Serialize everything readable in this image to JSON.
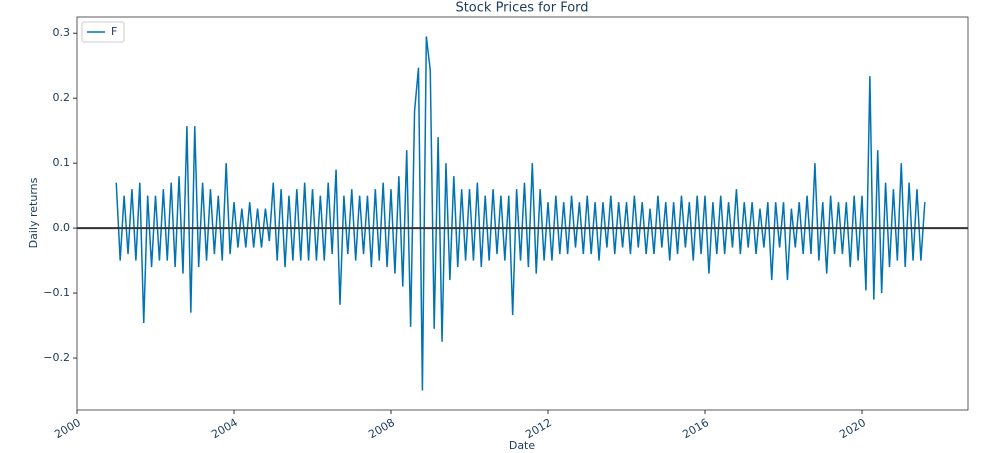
{
  "chart_data": {
    "type": "line",
    "title": "Stock Prices for Ford",
    "xlabel": "Date",
    "ylabel": "Daily returns",
    "legend": "upper left",
    "hline": 0,
    "hline_color": "#333333",
    "xlim": [
      2000,
      2022.7
    ],
    "xticks": [
      2000,
      2004,
      2008,
      2012,
      2016,
      2020
    ],
    "ylim": [
      -0.28,
      0.325
    ],
    "yticks": [
      {
        "value": -0.2,
        "label": "−0.2"
      },
      {
        "value": -0.1,
        "label": "−0.1"
      },
      {
        "value": 0,
        "label": "0.0"
      },
      0.1,
      0.2,
      0.3
    ],
    "x": [
      2001,
      2001.1,
      2001.2,
      2001.3,
      2001.4,
      2001.5,
      2001.6,
      2001.7,
      2001.8,
      2001.9,
      2002,
      2002.1,
      2002.2,
      2002.3,
      2002.4,
      2002.5,
      2002.6,
      2002.7,
      2002.8,
      2002.9,
      2003,
      2003.1,
      2003.2,
      2003.3,
      2003.4,
      2003.5,
      2003.6,
      2003.7,
      2003.8,
      2003.9,
      2004,
      2004.1,
      2004.2,
      2004.3,
      2004.4,
      2004.5,
      2004.6,
      2004.7,
      2004.8,
      2004.9,
      2005,
      2005.1,
      2005.2,
      2005.3,
      2005.4,
      2005.5,
      2005.6,
      2005.7,
      2005.8,
      2005.9,
      2006,
      2006.1,
      2006.2,
      2006.3,
      2006.4,
      2006.5,
      2006.6,
      2006.7,
      2006.8,
      2006.9,
      2007,
      2007.1,
      2007.2,
      2007.3,
      2007.4,
      2007.5,
      2007.6,
      2007.7,
      2007.8,
      2007.9,
      2008,
      2008.1,
      2008.2,
      2008.3,
      2008.4,
      2008.5,
      2008.6,
      2008.7,
      2008.8,
      2008.9,
      2009,
      2009.1,
      2009.2,
      2009.3,
      2009.4,
      2009.5,
      2009.6,
      2009.7,
      2009.8,
      2009.9,
      2010,
      2010.1,
      2010.2,
      2010.3,
      2010.4,
      2010.5,
      2010.6,
      2010.7,
      2010.8,
      2010.9,
      2011,
      2011.1,
      2011.2,
      2011.3,
      2011.4,
      2011.5,
      2011.6,
      2011.7,
      2011.8,
      2011.9,
      2012,
      2012.1,
      2012.2,
      2012.3,
      2012.4,
      2012.5,
      2012.6,
      2012.7,
      2012.8,
      2012.9,
      2013,
      2013.1,
      2013.2,
      2013.3,
      2013.4,
      2013.5,
      2013.6,
      2013.7,
      2013.8,
      2013.9,
      2014,
      2014.1,
      2014.2,
      2014.3,
      2014.4,
      2014.5,
      2014.6,
      2014.7,
      2014.8,
      2014.9,
      2015,
      2015.1,
      2015.2,
      2015.3,
      2015.4,
      2015.5,
      2015.6,
      2015.7,
      2015.8,
      2015.9,
      2016,
      2016.1,
      2016.2,
      2016.3,
      2016.4,
      2016.5,
      2016.6,
      2016.7,
      2016.8,
      2016.9,
      2017,
      2017.1,
      2017.2,
      2017.3,
      2017.4,
      2017.5,
      2017.6,
      2017.7,
      2017.8,
      2017.9,
      2018,
      2018.1,
      2018.2,
      2018.3,
      2018.4,
      2018.5,
      2018.6,
      2018.7,
      2018.8,
      2018.9,
      2019,
      2019.1,
      2019.2,
      2019.3,
      2019.4,
      2019.5,
      2019.6,
      2019.7,
      2019.8,
      2019.9,
      2020,
      2020.1,
      2020.2,
      2020.3,
      2020.4,
      2020.5,
      2020.6,
      2020.7,
      2020.8,
      2020.9,
      2021,
      2021.1,
      2021.2,
      2021.3,
      2021.4,
      2021.5,
      2021.6
    ],
    "series": [
      {
        "name": "F",
        "color": "#0173b2",
        "values": [
          0.07,
          -0.05,
          0.05,
          -0.04,
          0.06,
          -0.05,
          0.07,
          -0.146,
          0.05,
          -0.06,
          0.05,
          -0.05,
          0.06,
          -0.05,
          0.07,
          -0.06,
          0.08,
          -0.07,
          0.157,
          -0.13,
          0.157,
          -0.06,
          0.07,
          -0.05,
          0.06,
          -0.04,
          0.05,
          -0.05,
          0.1,
          -0.04,
          0.04,
          -0.03,
          0.03,
          -0.03,
          0.04,
          -0.03,
          0.03,
          -0.03,
          0.03,
          -0.02,
          0.07,
          -0.05,
          0.06,
          -0.06,
          0.05,
          -0.05,
          0.06,
          -0.05,
          0.07,
          -0.05,
          0.06,
          -0.05,
          0.05,
          -0.05,
          0.07,
          -0.04,
          0.09,
          -0.118,
          0.05,
          -0.04,
          0.06,
          -0.05,
          0.05,
          -0.04,
          0.05,
          -0.06,
          0.06,
          -0.05,
          0.07,
          -0.06,
          0.06,
          -0.07,
          0.08,
          -0.09,
          0.12,
          -0.152,
          0.18,
          0.247,
          -0.25,
          0.295,
          0.243,
          -0.155,
          0.14,
          -0.175,
          0.1,
          -0.08,
          0.08,
          -0.06,
          0.06,
          -0.05,
          0.06,
          -0.05,
          0.07,
          -0.06,
          0.05,
          -0.05,
          0.06,
          -0.04,
          0.05,
          -0.05,
          0.05,
          -0.134,
          0.06,
          -0.05,
          0.07,
          -0.06,
          0.1,
          -0.07,
          0.06,
          -0.05,
          0.04,
          -0.05,
          0.05,
          -0.04,
          0.04,
          -0.04,
          0.05,
          -0.03,
          0.04,
          -0.04,
          0.05,
          -0.04,
          0.04,
          -0.05,
          0.04,
          -0.03,
          0.05,
          -0.04,
          0.04,
          -0.03,
          0.04,
          -0.04,
          0.05,
          -0.03,
          0.04,
          -0.04,
          0.03,
          -0.04,
          0.05,
          -0.03,
          0.04,
          -0.05,
          0.04,
          -0.04,
          0.05,
          -0.03,
          0.04,
          -0.05,
          0.05,
          -0.04,
          0.05,
          -0.07,
          0.04,
          -0.04,
          0.05,
          -0.04,
          0.04,
          -0.03,
          0.06,
          -0.04,
          0.04,
          -0.03,
          0.04,
          -0.04,
          0.03,
          -0.03,
          0.04,
          -0.08,
          0.04,
          -0.03,
          0.04,
          -0.08,
          0.03,
          -0.03,
          0.04,
          -0.04,
          0.05,
          -0.04,
          0.1,
          -0.05,
          0.04,
          -0.07,
          0.05,
          -0.04,
          0.04,
          -0.04,
          0.04,
          -0.06,
          0.05,
          -0.05,
          0.05,
          -0.096,
          0.234,
          -0.11,
          0.12,
          -0.1,
          0.07,
          -0.06,
          0.06,
          -0.05,
          0.1,
          -0.06,
          0.07,
          -0.05,
          0.06,
          -0.05,
          0.04
        ]
      }
    ]
  }
}
